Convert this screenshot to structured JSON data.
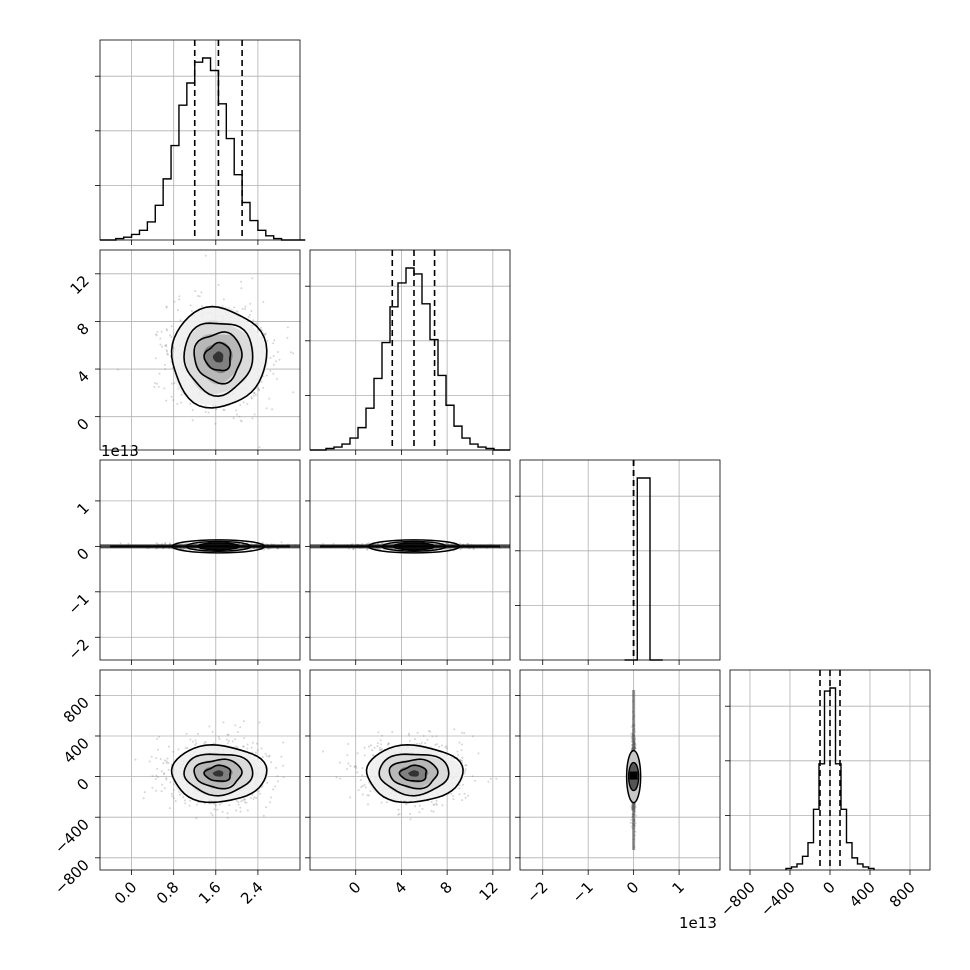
{
  "chart_data": {
    "type": "corner",
    "title": "",
    "grid": true,
    "panels": [
      {
        "id": "hist-0",
        "type": "histogram",
        "xlim": [
          -0.6,
          3.2
        ],
        "bins": {
          "start": -0.6,
          "width": 0.15,
          "counts": [
            0,
            0,
            1,
            2,
            4,
            7,
            13,
            25,
            44,
            68,
            97,
            113,
            128,
            131,
            122,
            98,
            73,
            47,
            27,
            14,
            7,
            3,
            1,
            0,
            0,
            0
          ]
        },
        "quantiles": [
          1.2,
          1.65,
          2.1
        ],
        "xtick_values": [
          0.0,
          0.8,
          1.6,
          2.4
        ]
      },
      {
        "id": "hist-1",
        "type": "histogram",
        "xlim": [
          -4,
          13.5
        ],
        "bins": {
          "start": -4,
          "width": 0.7,
          "counts": [
            0,
            0,
            1,
            2,
            4,
            8,
            15,
            28,
            48,
            72,
            96,
            112,
            122,
            118,
            98,
            74,
            50,
            30,
            16,
            8,
            4,
            2,
            1,
            0,
            0
          ]
        },
        "quantiles": [
          3.2,
          5.1,
          6.9
        ]
      },
      {
        "id": "hist-2",
        "type": "histogram",
        "xlim": [
          -25000000000000.0,
          19000000000000.0
        ],
        "bins": {
          "start": -2000000000000.0,
          "width": 2800000000000.0,
          "counts": [
            0,
            140,
            0
          ]
        },
        "quantiles": [
          0.0,
          0.0,
          0.0
        ]
      },
      {
        "id": "hist-3",
        "type": "histogram",
        "xlim": [
          -1000,
          1000
        ],
        "bins": {
          "start": -440,
          "width": 55,
          "counts": [
            1,
            2,
            4,
            9,
            18,
            40,
            70,
            118,
            120,
            70,
            40,
            18,
            8,
            4,
            2,
            1
          ]
        },
        "quantiles": [
          -100,
          0,
          100
        ],
        "xtick_values": [
          -800,
          -400,
          0,
          400,
          800
        ]
      },
      {
        "id": "scatter-1-0",
        "type": "contour2d",
        "xlim": [
          -0.6,
          3.2
        ],
        "ylim": [
          -2.8,
          14
        ],
        "center": [
          1.65,
          5.0
        ],
        "spread": [
          0.45,
          2.1
        ],
        "shape": "blob",
        "levels": [
          0.3,
          0.65,
          1.1,
          1.7
        ],
        "ytick_values": [
          0,
          4,
          8,
          12
        ]
      },
      {
        "id": "scatter-2-0",
        "type": "contour2d",
        "xlim": [
          -0.6,
          3.2
        ],
        "ylim": [
          -25000000000000.0,
          19000000000000.0
        ],
        "center": [
          1.65,
          0.0
        ],
        "spread": [
          0.55,
          300000000000.0
        ],
        "shape": "thin",
        "ytick_values": [
          -20000000000000.0,
          -10000000000000.0,
          0,
          10000000000000.0
        ]
      },
      {
        "id": "scatter-2-1",
        "type": "contour2d",
        "xlim": [
          -4,
          13.5
        ],
        "ylim": [
          -25000000000000.0,
          19000000000000.0
        ],
        "center": [
          5.1,
          0.0
        ],
        "spread": [
          2.5,
          300000000000.0
        ],
        "shape": "thin"
      },
      {
        "id": "scatter-3-0",
        "type": "contour2d",
        "xlim": [
          -0.6,
          3.2
        ],
        "ylim": [
          -920,
          1050
        ],
        "center": [
          1.65,
          30
        ],
        "spread": [
          0.45,
          140
        ],
        "shape": "blob",
        "ytick_values": [
          -800,
          -400,
          0,
          400,
          800
        ]
      },
      {
        "id": "scatter-3-1",
        "type": "contour2d",
        "xlim": [
          -4,
          13.5
        ],
        "ylim": [
          -920,
          1050
        ],
        "center": [
          5.1,
          30
        ],
        "spread": [
          2.1,
          140
        ],
        "shape": "blob",
        "xtick_values": [
          0,
          4,
          8,
          12
        ]
      },
      {
        "id": "scatter-3-2",
        "type": "contour2d",
        "xlim": [
          -25000000000000.0,
          19000000000000.0
        ],
        "ylim": [
          -920,
          1050
        ],
        "center": [
          0.0,
          0.0
        ],
        "spread": [
          200000000000.0,
          200
        ],
        "shape": "spike",
        "xtick_values": [
          -20000000000000.0,
          -10000000000000.0,
          0,
          10000000000000.0
        ]
      }
    ],
    "tick_labels": {
      "col0_x": [
        "0.0",
        "0.8",
        "1.6",
        "2.4"
      ],
      "col1_x": [
        "0",
        "4",
        "8",
        "12"
      ],
      "col2_x": [
        "−2",
        "−1",
        "0",
        "1"
      ],
      "col3_x": [
        "−800",
        "−400",
        "0",
        "400",
        "800"
      ],
      "row1_y": [
        "0",
        "4",
        "8",
        "12"
      ],
      "row2_y": [
        "−2",
        "−1",
        "0",
        "1"
      ],
      "row3_y": [
        "−800",
        "−400",
        "0",
        "400",
        "800"
      ]
    },
    "offset_labels": {
      "row2_y": "1e13",
      "col2_x": "1e13"
    },
    "colors": {
      "hist_line": "#000000",
      "quantile_line": "#000000",
      "grid": "#b0b0b0",
      "points": "#888888",
      "density_dark": "#1a1a1a",
      "contour": "#000000"
    }
  }
}
